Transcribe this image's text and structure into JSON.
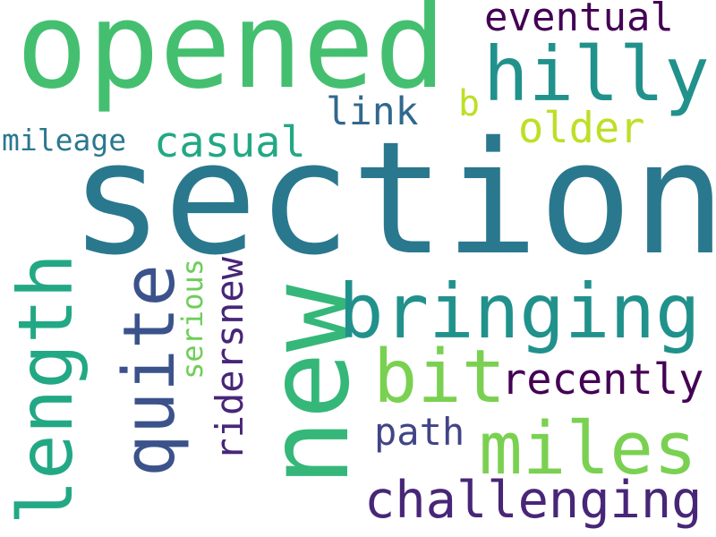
{
  "words": [
    {
      "text": "section",
      "color": "#2a788e"
    },
    {
      "text": "opened",
      "color": "#44bf70"
    },
    {
      "text": "new",
      "color": "#35b779"
    },
    {
      "text": "hilly",
      "color": "#21918c"
    },
    {
      "text": "bringing",
      "color": "#21918c"
    },
    {
      "text": "length",
      "color": "#22a884"
    },
    {
      "text": "quite",
      "color": "#3b528b"
    },
    {
      "text": "miles",
      "color": "#7ad151"
    },
    {
      "text": "bit",
      "color": "#7ad151"
    },
    {
      "text": "challenging",
      "color": "#482677"
    },
    {
      "text": "eventual",
      "color": "#440154"
    },
    {
      "text": "casual",
      "color": "#22a884"
    },
    {
      "text": "recently",
      "color": "#440154"
    },
    {
      "text": "ridersnew",
      "color": "#482677"
    },
    {
      "text": "older",
      "color": "#bddf26"
    },
    {
      "text": "link",
      "color": "#31688e"
    },
    {
      "text": "path",
      "color": "#414487"
    },
    {
      "text": "serious",
      "color": "#6ece58"
    },
    {
      "text": "mileage",
      "color": "#2a788e"
    },
    {
      "text": "b",
      "color": "#bddf26"
    }
  ]
}
